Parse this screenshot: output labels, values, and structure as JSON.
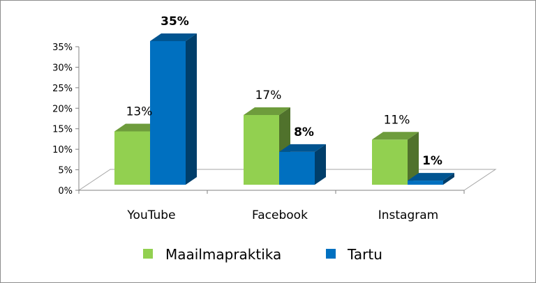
{
  "chart_data": {
    "type": "bar",
    "categories": [
      "YouTube",
      "Facebook",
      "Instagram"
    ],
    "series": [
      {
        "name": "Maailmapraktika",
        "values": [
          13,
          17,
          11
        ],
        "labels": [
          "13%",
          "17%",
          "11%"
        ],
        "color": "#92d050",
        "label_bold": false
      },
      {
        "name": "Tartu",
        "values": [
          35,
          8,
          1
        ],
        "labels": [
          "35%",
          "8%",
          "1%"
        ],
        "color": "#0070c0",
        "label_bold": true
      }
    ],
    "title": "",
    "xlabel": "",
    "ylabel": "",
    "ylim": [
      0,
      35
    ],
    "yticks": [
      0,
      5,
      10,
      15,
      20,
      25,
      30,
      35
    ],
    "ytick_labels": [
      "0%",
      "5%",
      "10%",
      "15%",
      "20%",
      "25%",
      "30%",
      "35%"
    ],
    "grid": false,
    "style": "3d-clustered-column",
    "legend_position": "bottom"
  }
}
